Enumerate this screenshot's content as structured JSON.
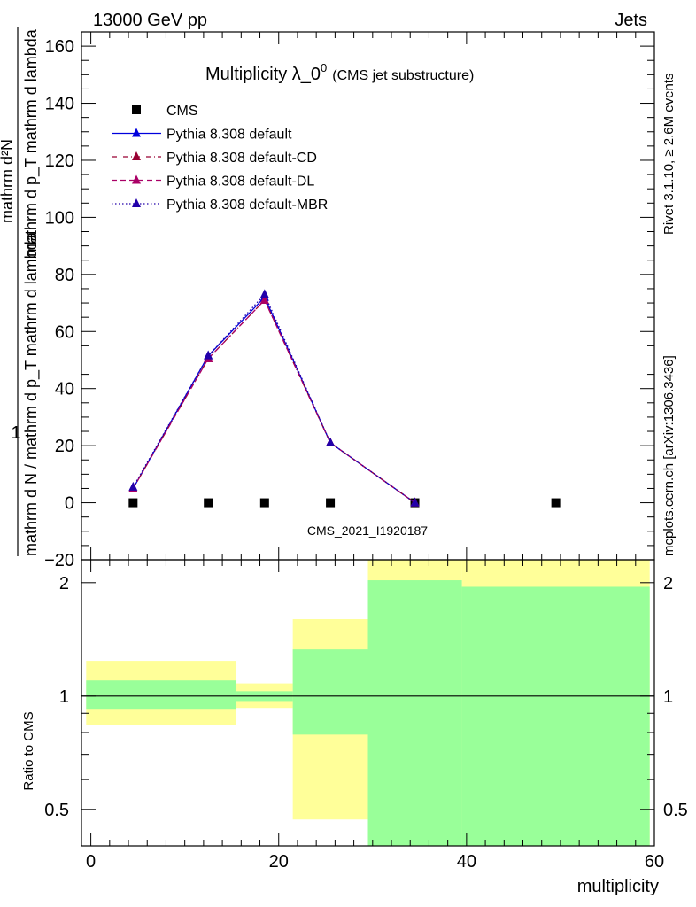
{
  "header": {
    "left": "13000 GeV pp",
    "right": "Jets"
  },
  "side_labels": {
    "rivet": "Rivet 3.1.10, ≥ 2.6M events",
    "mcplots": "mcplots.cern.ch [arXiv:1306.3436]"
  },
  "chart_data": [
    {
      "type": "line",
      "title_main": "Multiplicity λ_0",
      "title_sup": "0",
      "subtitle": "(CMS jet substructure)",
      "watermark": "CMS_2021_I1920187",
      "ylabel_num": "1",
      "ylabel_den": "mathrm d N / mathrm d p_T mathrm d lambda",
      "ylabel_top": "mathrm d²N",
      "ylabel_mid": "mathrm d p_T mathrm d lambda",
      "xlim": [
        -1,
        60
      ],
      "ylim": [
        -20,
        165
      ],
      "yticks": [
        -20,
        0,
        20,
        40,
        60,
        80,
        100,
        120,
        140,
        160
      ],
      "legend_position": "top-left",
      "series": [
        {
          "name": "CMS",
          "color": "#000000",
          "style": "markers-square",
          "x": [
            4.5,
            12.5,
            18.5,
            25.5,
            34.5,
            49.5
          ],
          "y": [
            0,
            0,
            0,
            0,
            0,
            0
          ]
        },
        {
          "name": "Pythia 8.308 default",
          "color": "#0000dd",
          "style": "solid",
          "x": [
            4.5,
            12.5,
            18.5,
            25.5,
            34.5
          ],
          "y": [
            5,
            51.5,
            72,
            21,
            0
          ]
        },
        {
          "name": "Pythia 8.308 default-CD",
          "color": "#990033",
          "style": "dashdot",
          "x": [
            4.5,
            12.5,
            18.5,
            25.5,
            34.5
          ],
          "y": [
            5,
            50.5,
            71,
            21,
            0
          ]
        },
        {
          "name": "Pythia 8.308 default-DL",
          "color": "#aa0066",
          "style": "dashed",
          "x": [
            4.5,
            12.5,
            18.5,
            25.5,
            34.5
          ],
          "y": [
            5,
            50.5,
            71,
            21,
            0
          ]
        },
        {
          "name": "Pythia 8.308 default-MBR",
          "color": "#2200aa",
          "style": "dotted",
          "x": [
            4.5,
            12.5,
            18.5,
            25.5,
            34.5
          ],
          "y": [
            5.5,
            51.5,
            73,
            21,
            0
          ]
        }
      ]
    },
    {
      "type": "area",
      "ylabel": "Ratio to CMS",
      "xlabel": "multiplicity",
      "xlim": [
        -1,
        60
      ],
      "ylim": [
        0.4,
        2.3
      ],
      "yscale": "log",
      "xticks": [
        0,
        20,
        40,
        60
      ],
      "yticks": [
        0.5,
        1,
        2
      ],
      "bands": {
        "edges": [
          -0.5,
          15.5,
          21.5,
          29.5,
          39.5,
          59.5
        ],
        "inner": {
          "color": "#99ff99",
          "lo": [
            0.92,
            0.97,
            0.79,
            0.3,
            0.3
          ],
          "hi": [
            1.1,
            1.03,
            1.33,
            2.03,
            1.95
          ]
        },
        "outer": {
          "color": "#ffff99",
          "lo": [
            0.84,
            0.93,
            0.47,
            0.3,
            0.3
          ],
          "hi": [
            1.24,
            1.08,
            1.6,
            2.4,
            2.4
          ]
        }
      }
    }
  ]
}
